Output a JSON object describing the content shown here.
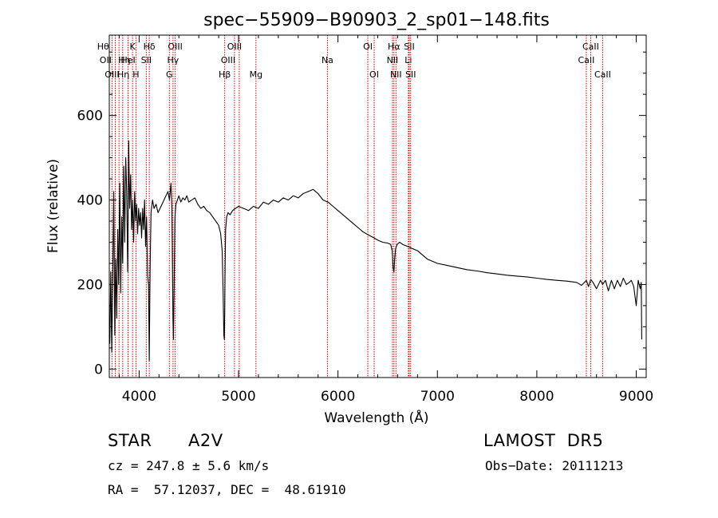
{
  "chart_data": {
    "type": "line",
    "title": "spec−55909−B90903_2_sp01−148.fits",
    "xlabel": "Wavelength (Å)",
    "ylabel": "Flux (relative)",
    "xlim": [
      3700,
      9100
    ],
    "ylim": [
      -20,
      790
    ],
    "x_ticks": [
      4000,
      5000,
      6000,
      7000,
      8000,
      9000
    ],
    "y_ticks": [
      0,
      200,
      400,
      600
    ],
    "line_color": "#000000",
    "marker_color": "#cc0000",
    "grid": false,
    "series": [
      {
        "x": [
          3705,
          3715,
          3725,
          3735,
          3745,
          3755,
          3765,
          3775,
          3785,
          3795,
          3805,
          3815,
          3825,
          3835,
          3845,
          3855,
          3865,
          3875,
          3885,
          3895,
          3905,
          3915,
          3925,
          3935,
          3945,
          3955,
          3965,
          3975,
          3985,
          3995,
          4005,
          4015,
          4025,
          4035,
          4045,
          4055,
          4065,
          4075,
          4085,
          4095,
          4102,
          4110,
          4120,
          4135,
          4150,
          4170,
          4190,
          4210,
          4230,
          4250,
          4270,
          4290,
          4305,
          4320,
          4330,
          4340,
          4345,
          4352,
          4360,
          4370,
          4385,
          4400,
          4420,
          4440,
          4460,
          4480,
          4500,
          4530,
          4560,
          4590,
          4620,
          4650,
          4680,
          4710,
          4740,
          4770,
          4800,
          4820,
          4835,
          4845,
          4852,
          4857,
          4861,
          4865,
          4870,
          4880,
          4895,
          4915,
          4940,
          4970,
          5000,
          5050,
          5100,
          5150,
          5200,
          5250,
          5300,
          5350,
          5400,
          5450,
          5500,
          5550,
          5600,
          5650,
          5700,
          5750,
          5800,
          5850,
          5900,
          5950,
          6000,
          6050,
          6100,
          6150,
          6200,
          6250,
          6300,
          6350,
          6400,
          6450,
          6500,
          6530,
          6545,
          6555,
          6563,
          6570,
          6580,
          6595,
          6620,
          6650,
          6700,
          6750,
          6800,
          6850,
          6900,
          7000,
          7100,
          7200,
          7300,
          7400,
          7500,
          7600,
          7700,
          7800,
          7900,
          8000,
          8100,
          8200,
          8300,
          8400,
          8450,
          8498,
          8520,
          8542,
          8565,
          8600,
          8640,
          8662,
          8690,
          8720,
          8750,
          8780,
          8810,
          8840,
          8870,
          8900,
          8930,
          8950,
          8975,
          9000,
          9020,
          9040,
          9050,
          9055
        ],
        "y": [
          60,
          230,
          40,
          220,
          420,
          80,
          260,
          120,
          330,
          200,
          440,
          180,
          360,
          250,
          480,
          300,
          500,
          420,
          230,
          540,
          380,
          460,
          330,
          400,
          300,
          420,
          350,
          390,
          320,
          380,
          340,
          370,
          310,
          380,
          330,
          400,
          290,
          360,
          220,
          200,
          20,
          230,
          370,
          400,
          380,
          390,
          370,
          380,
          390,
          400,
          410,
          420,
          400,
          440,
          380,
          120,
          70,
          200,
          360,
          390,
          400,
          410,
          395,
          405,
          400,
          410,
          395,
          400,
          405,
          390,
          380,
          385,
          375,
          370,
          360,
          350,
          340,
          320,
          280,
          180,
          80,
          70,
          140,
          250,
          330,
          360,
          370,
          365,
          375,
          380,
          385,
          380,
          375,
          385,
          380,
          395,
          390,
          400,
          395,
          405,
          400,
          410,
          405,
          415,
          420,
          425,
          415,
          400,
          395,
          385,
          375,
          365,
          355,
          345,
          335,
          325,
          318,
          312,
          305,
          300,
          298,
          295,
          280,
          240,
          230,
          260,
          285,
          295,
          300,
          295,
          290,
          285,
          280,
          270,
          260,
          250,
          245,
          240,
          235,
          232,
          228,
          225,
          222,
          220,
          218,
          215,
          212,
          210,
          208,
          205,
          198,
          210,
          195,
          212,
          205,
          190,
          210,
          200,
          210,
          185,
          210,
          190,
          210,
          195,
          215,
          200,
          205,
          210,
          195,
          150,
          210,
          190,
          205,
          70
        ]
      }
    ],
    "line_markers": [
      {
        "label": "Hθ",
        "x": 3798,
        "row": 0,
        "dx": -20
      },
      {
        "label": "OII",
        "x": 3727,
        "row": 1,
        "dx": -8
      },
      {
        "label": "OIII",
        "x": 3760,
        "row": 2,
        "dx": -4
      },
      {
        "label": "Hη",
        "x": 3835,
        "row": 1,
        "dx": 2
      },
      {
        "label": "K",
        "x": 3934,
        "row": 0,
        "dx": 0
      },
      {
        "label": "HeI",
        "x": 3889,
        "row": 1,
        "dx": 0
      },
      {
        "label": "Hη",
        "x": 3889,
        "row": 2,
        "dx": -6
      },
      {
        "label": "H",
        "x": 3968,
        "row": 2,
        "dx": 0
      },
      {
        "label": "Hδ",
        "x": 4102,
        "row": 0,
        "dx": 0
      },
      {
        "label": "SII",
        "x": 4072,
        "row": 1,
        "dx": 0
      },
      {
        "label": "OIII",
        "x": 4363,
        "row": 0,
        "dx": 0
      },
      {
        "label": "Hγ",
        "x": 4341,
        "row": 1,
        "dx": 0
      },
      {
        "label": "G",
        "x": 4304,
        "row": 2,
        "dx": 0
      },
      {
        "label": "OIII",
        "x": 4959,
        "row": 0,
        "dx": 0
      },
      {
        "label": "OIII",
        "x": 5007,
        "row": 1,
        "dx": -14
      },
      {
        "label": "Hβ",
        "x": 4861,
        "row": 2,
        "dx": 0
      },
      {
        "label": "Mg",
        "x": 5175,
        "row": 2,
        "dx": 0
      },
      {
        "label": "Na",
        "x": 5894,
        "row": 1,
        "dx": 0
      },
      {
        "label": "OI",
        "x": 6300,
        "row": 0,
        "dx": 0
      },
      {
        "label": "OI",
        "x": 6364,
        "row": 2,
        "dx": 0
      },
      {
        "label": "Hα",
        "x": 6563,
        "row": 0,
        "dx": 0
      },
      {
        "label": "NII",
        "x": 6548,
        "row": 1,
        "dx": 0
      },
      {
        "label": "NII",
        "x": 6583,
        "row": 2,
        "dx": 0
      },
      {
        "label": "SII",
        "x": 6717,
        "row": 0,
        "dx": 0
      },
      {
        "label": "Li",
        "x": 6708,
        "row": 1,
        "dx": 0
      },
      {
        "label": "SII",
        "x": 6731,
        "row": 2,
        "dx": 0
      },
      {
        "label": "CaII",
        "x": 8542,
        "row": 0,
        "dx": 0
      },
      {
        "label": "CaII",
        "x": 8498,
        "row": 1,
        "dx": 0
      },
      {
        "label": "CaII",
        "x": 8662,
        "row": 2,
        "dx": 0
      }
    ]
  },
  "info": {
    "object_class": "STAR",
    "subclass": "A2V",
    "survey": "LAMOST  DR5",
    "cz": "cz = 247.8 ± 5.6 km/s",
    "obs_date": "Obs−Date: 20111213",
    "coords": "RA =  57.12037, DEC =  48.61910"
  }
}
